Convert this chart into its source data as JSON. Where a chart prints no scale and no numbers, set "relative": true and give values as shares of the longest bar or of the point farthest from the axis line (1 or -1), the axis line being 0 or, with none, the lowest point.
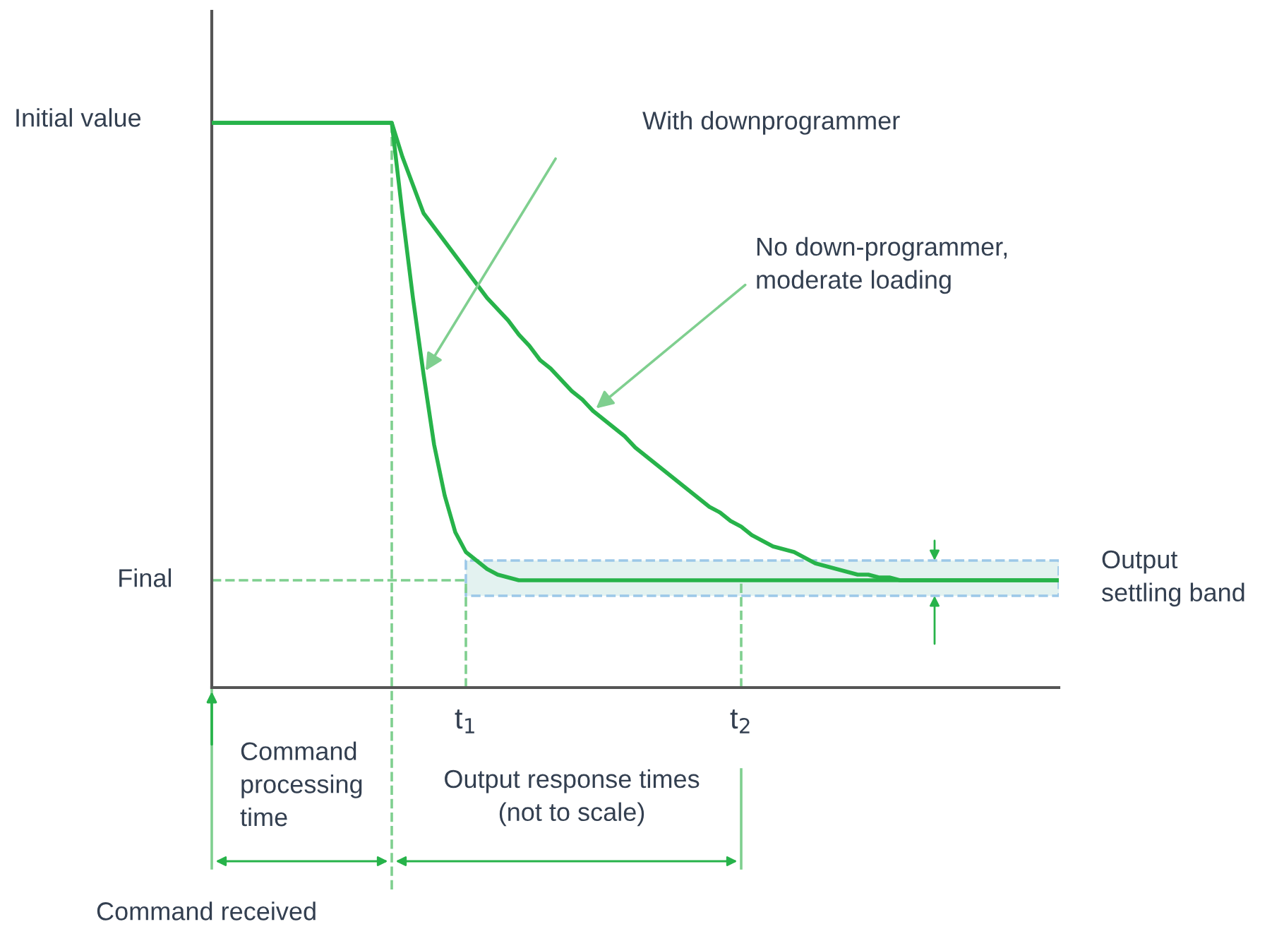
{
  "chart_data": {
    "type": "line",
    "relative": true,
    "line_style": "solid",
    "marker": "none",
    "grid": false,
    "categories": [
      null,
      null,
      null,
      null,
      null,
      null,
      null,
      null,
      null,
      null,
      null,
      null,
      null,
      null,
      null,
      null,
      null,
      null,
      null,
      null,
      null,
      null,
      null,
      null,
      "t$_{1}$",
      null,
      null,
      null,
      null,
      null,
      null,
      null,
      null,
      null,
      null,
      null,
      null,
      null,
      null,
      null,
      null,
      null,
      null,
      null,
      null,
      null,
      null,
      null,
      null,
      null,
      "t$_{2}$",
      null,
      null,
      null,
      null,
      null,
      null,
      null,
      null,
      null,
      null,
      null,
      null,
      null,
      null,
      null,
      null,
      null,
      null,
      null,
      null,
      null,
      null,
      null,
      null,
      null,
      null,
      null,
      null,
      null,
      null
    ],
    "series": [
      {
        "color": "#27b34a",
        "values": [
          1.0,
          1.0,
          1.0,
          1.0,
          1.0,
          1.0,
          1.0,
          1.0,
          1.0,
          1.0,
          1.0,
          1.0,
          1.0,
          1.0,
          1.0,
          1.0,
          1.0,
          1.0,
          0.84,
          0.69,
          0.555,
          0.43,
          0.34,
          0.275,
          0.24,
          0.225,
          0.21,
          0.2,
          0.195,
          0.19,
          0.19,
          0.19,
          0.19,
          0.19,
          0.19,
          0.19,
          0.19,
          0.19,
          0.19,
          0.19,
          0.19,
          0.19,
          0.19,
          0.19,
          0.19,
          0.19,
          0.19,
          0.19,
          0.19,
          0.19,
          0.19,
          0.19,
          0.19,
          0.19,
          0.19,
          0.19,
          0.19,
          0.19,
          0.19,
          0.19,
          0.19,
          0.19,
          0.19,
          0.19,
          0.19,
          0.19,
          0.19,
          0.19,
          0.19,
          0.19,
          0.19,
          0.19,
          0.19,
          0.19,
          0.19,
          0.19,
          0.19,
          0.19,
          0.19,
          0.19,
          0.19
        ]
      },
      {
        "color": "#27b34a",
        "values": [
          1.0,
          1.0,
          1.0,
          1.0,
          1.0,
          1.0,
          1.0,
          1.0,
          1.0,
          1.0,
          1.0,
          1.0,
          1.0,
          1.0,
          1.0,
          1.0,
          1.0,
          1.0,
          0.94,
          0.89,
          0.84,
          0.815,
          0.79,
          0.765,
          0.74,
          0.715,
          0.69,
          0.67,
          0.65,
          0.625,
          0.605,
          0.58,
          0.565,
          0.545,
          0.525,
          0.51,
          0.49,
          0.475,
          0.46,
          0.445,
          0.425,
          0.41,
          0.395,
          0.38,
          0.365,
          0.35,
          0.335,
          0.32,
          0.31,
          0.295,
          0.285,
          0.27,
          0.26,
          0.25,
          0.245,
          0.24,
          0.23,
          0.22,
          0.215,
          0.21,
          0.205,
          0.2,
          0.2,
          0.195,
          0.195,
          0.19,
          0.19,
          0.19,
          0.19,
          0.19,
          0.19,
          0.19,
          0.19,
          0.19,
          0.19,
          0.19,
          0.19,
          0.19,
          0.19,
          0.19,
          0.19
        ]
      }
    ],
    "ref_lines": [
      {
        "axis": "y",
        "value": 0.19,
        "label": "Final",
        "color": "#7fcf8f",
        "line_style": "dashed"
      },
      {
        "axis": "x",
        "value": "t$_{1}$",
        "color": "#7fcf8f",
        "line_style": "dashed"
      },
      {
        "axis": "x",
        "value": "t$_{2}$",
        "color": "#7fcf8f",
        "line_style": "dashed"
      }
    ],
    "bands": [
      {
        "axis": "y",
        "from": 0.1625,
        "to": 0.225,
        "label": "Output\nsettling band",
        "color": "#e3f2f0"
      }
    ],
    "annotations": [
      "With downprogrammer",
      "No down-programmer,\nmoderate loading",
      "Initial value",
      "Command\nprocessing\ntime",
      "Output response times\n(not to scale)",
      "Command received"
    ]
  }
}
